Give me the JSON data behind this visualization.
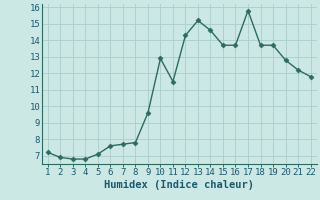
{
  "x": [
    1,
    2,
    3,
    4,
    5,
    6,
    7,
    8,
    9,
    10,
    11,
    12,
    13,
    14,
    15,
    16,
    17,
    18,
    19,
    20,
    21,
    22
  ],
  "y": [
    7.2,
    6.9,
    6.8,
    6.8,
    7.1,
    7.6,
    7.7,
    7.8,
    9.6,
    12.9,
    11.5,
    14.3,
    15.2,
    14.6,
    13.7,
    13.7,
    15.8,
    13.7,
    13.7,
    12.8,
    12.2,
    11.8
  ],
  "line_color": "#2d6b5e",
  "marker": "D",
  "marker_size": 2.5,
  "line_width": 1.0,
  "bg_color": "#cce8e4",
  "grid_color": "#aaccca",
  "xlabel": "Humidex (Indice chaleur)",
  "xlabel_color": "#1a5a6e",
  "xlabel_fontsize": 7.5,
  "tick_color": "#1a5a6e",
  "tick_fontsize": 6.5,
  "ylim": [
    6.5,
    16.2
  ],
  "xlim": [
    0.5,
    22.5
  ],
  "yticks": [
    7,
    8,
    9,
    10,
    11,
    12,
    13,
    14,
    15,
    16
  ],
  "xticks": [
    1,
    2,
    3,
    4,
    5,
    6,
    7,
    8,
    9,
    10,
    11,
    12,
    13,
    14,
    15,
    16,
    17,
    18,
    19,
    20,
    21,
    22
  ],
  "spine_color": "#2d6b5e"
}
